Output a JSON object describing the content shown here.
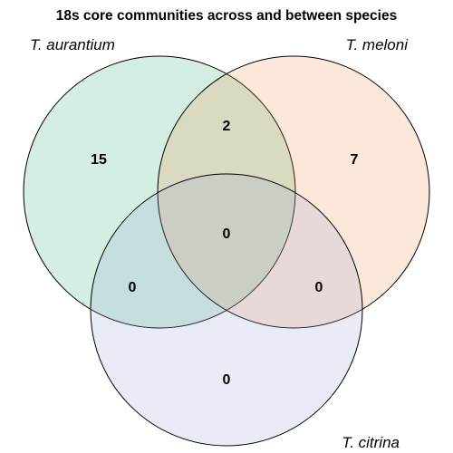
{
  "title": "18s core communities across and between species",
  "sets": [
    {
      "key": "a",
      "label": "T. aurantium",
      "color": "#2eab6e"
    },
    {
      "key": "b",
      "label": "T. meloni",
      "color": "#f28c46"
    },
    {
      "key": "c",
      "label": "T. citrina",
      "color": "#8fa2d0"
    }
  ],
  "fill_opacity": 0.2,
  "regions": {
    "a_only": "15",
    "b_only": "7",
    "c_only": "0",
    "a_b": "2",
    "a_c": "0",
    "b_c": "0",
    "a_b_c": "0"
  }
}
